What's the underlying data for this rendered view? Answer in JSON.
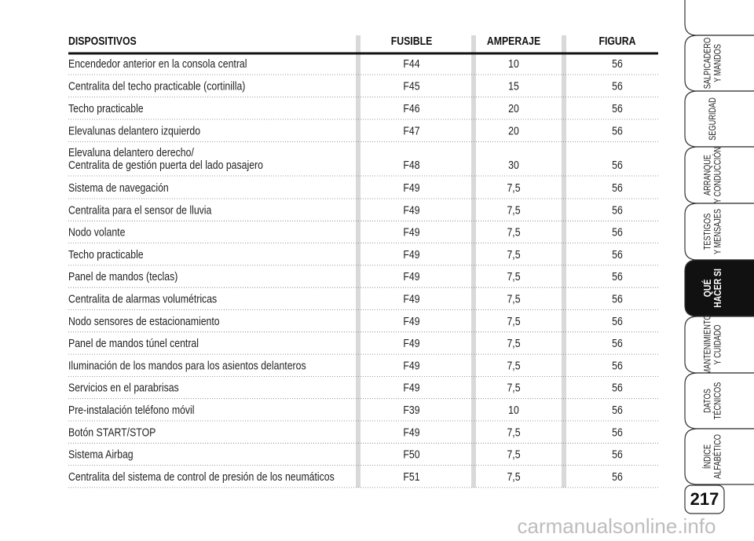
{
  "table": {
    "headers": [
      "DISPOSITIVOS",
      "FUSIBLE",
      "AMPERAJE",
      "FIGURA"
    ],
    "rows": [
      [
        "Encendedor anterior en la consola central",
        "F44",
        "10",
        "56"
      ],
      [
        "Centralita del techo practicable (cortinilla)",
        "F45",
        "15",
        "56"
      ],
      [
        "Techo practicable",
        "F46",
        "20",
        "56"
      ],
      [
        "Elevalunas delantero izquierdo",
        "F47",
        "20",
        "56"
      ],
      [
        [
          "Elevaluna delantero derecho/",
          "Centralita de gestión puerta del lado pasajero"
        ],
        "F48",
        "30",
        "56"
      ],
      [
        "Sistema de navegación",
        "F49",
        "7,5",
        "56"
      ],
      [
        "Centralita para el sensor de lluvia",
        "F49",
        "7,5",
        "56"
      ],
      [
        "Nodo volante",
        "F49",
        "7,5",
        "56"
      ],
      [
        "Techo practicable",
        "F49",
        "7,5",
        "56"
      ],
      [
        "Panel de mandos (teclas)",
        "F49",
        "7,5",
        "56"
      ],
      [
        "Centralita de alarmas volumétricas",
        "F49",
        "7,5",
        "56"
      ],
      [
        "Nodo sensores de estacionamiento",
        "F49",
        "7,5",
        "56"
      ],
      [
        "Panel de mandos túnel central",
        "F49",
        "7,5",
        "56"
      ],
      [
        "Iluminación de los mandos para los asientos delanteros",
        "F49",
        "7,5",
        "56"
      ],
      [
        "Servicios en el parabrisas",
        "F49",
        "7,5",
        "56"
      ],
      [
        "Pre-instalación teléfono móvil",
        "F39",
        "10",
        "56"
      ],
      [
        "Botón START/STOP",
        "F49",
        "7,5",
        "56"
      ],
      [
        "Sistema Airbag",
        "F50",
        "7,5",
        "56"
      ],
      [
        "Centralita del sistema de control de presión de los neumáticos",
        "F51",
        "7,5",
        "56"
      ]
    ]
  },
  "tabs": [
    [
      "SALPICADERO",
      "Y MANDOS"
    ],
    [
      "SEGURIDAD"
    ],
    [
      "ARRANQUE",
      "Y CONDUCCIÓN"
    ],
    [
      "TESTIGOS",
      "Y MENSAJES"
    ],
    [
      "QUÉ",
      "HACER SI"
    ],
    [
      "MANTENIMIENTO",
      "Y CUIDADO"
    ],
    [
      "DATOS",
      "TÉCNICOS"
    ],
    [
      "ÍNDICE",
      "ALFABÉTICO"
    ]
  ],
  "active_tab": 4,
  "page_number": "217",
  "watermark": "carmanualsonline.info"
}
